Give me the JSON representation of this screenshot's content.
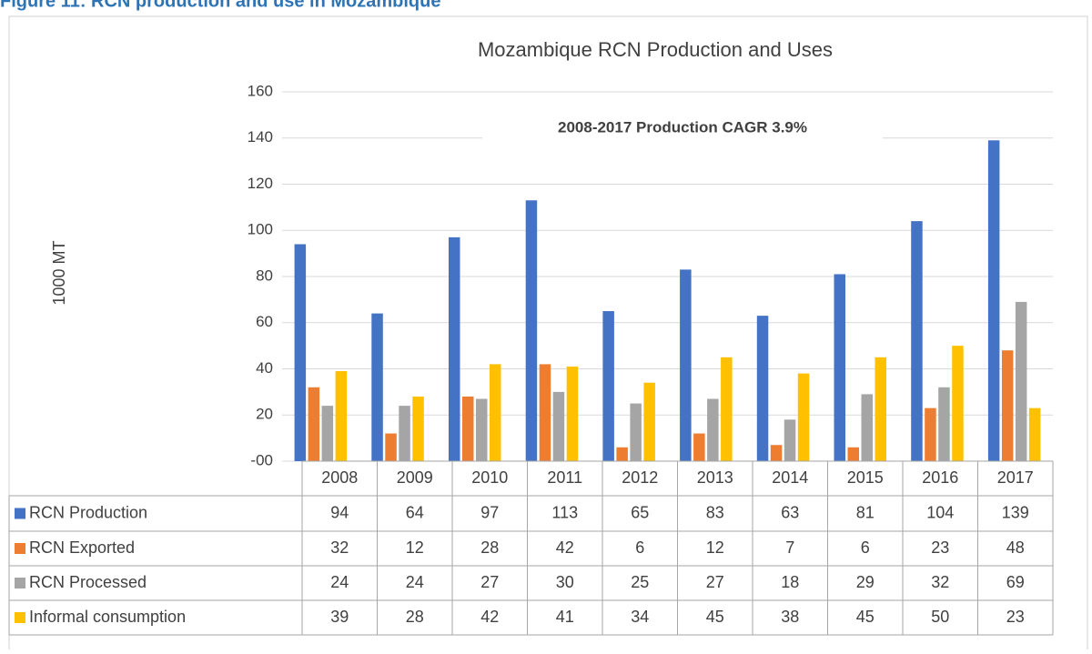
{
  "caption": "Figure 11: RCN production and use in Mozambique",
  "chart_data": {
    "type": "bar",
    "title": "Mozambique RCN Production and Uses",
    "annotation": "2008-2017 Production CAGR 3.9%",
    "y_label": "1000 MT",
    "categories": [
      "2008",
      "2009",
      "2010",
      "2011",
      "2012",
      "2013",
      "2014",
      "2015",
      "2016",
      "2017"
    ],
    "series": [
      {
        "name": "RCN Production",
        "color": "#4472c4",
        "values": [
          94,
          64,
          97,
          113,
          65,
          83,
          63,
          81,
          104,
          139
        ]
      },
      {
        "name": "RCN Exported",
        "color": "#ed7d31",
        "values": [
          32,
          12,
          28,
          42,
          6,
          12,
          7,
          6,
          23,
          48
        ]
      },
      {
        "name": "RCN Processed",
        "color": "#a5a5a5",
        "values": [
          24,
          24,
          27,
          30,
          25,
          27,
          18,
          29,
          32,
          69
        ]
      },
      {
        "name": "Informal consumption",
        "color": "#ffc000",
        "values": [
          39,
          28,
          42,
          41,
          34,
          45,
          38,
          45,
          50,
          23
        ]
      }
    ],
    "ylim": [
      0,
      160
    ],
    "yticks": [
      {
        "value": 0,
        "label": "-00"
      },
      20,
      40,
      60,
      80,
      100,
      120,
      140,
      160
    ],
    "grid": true
  }
}
